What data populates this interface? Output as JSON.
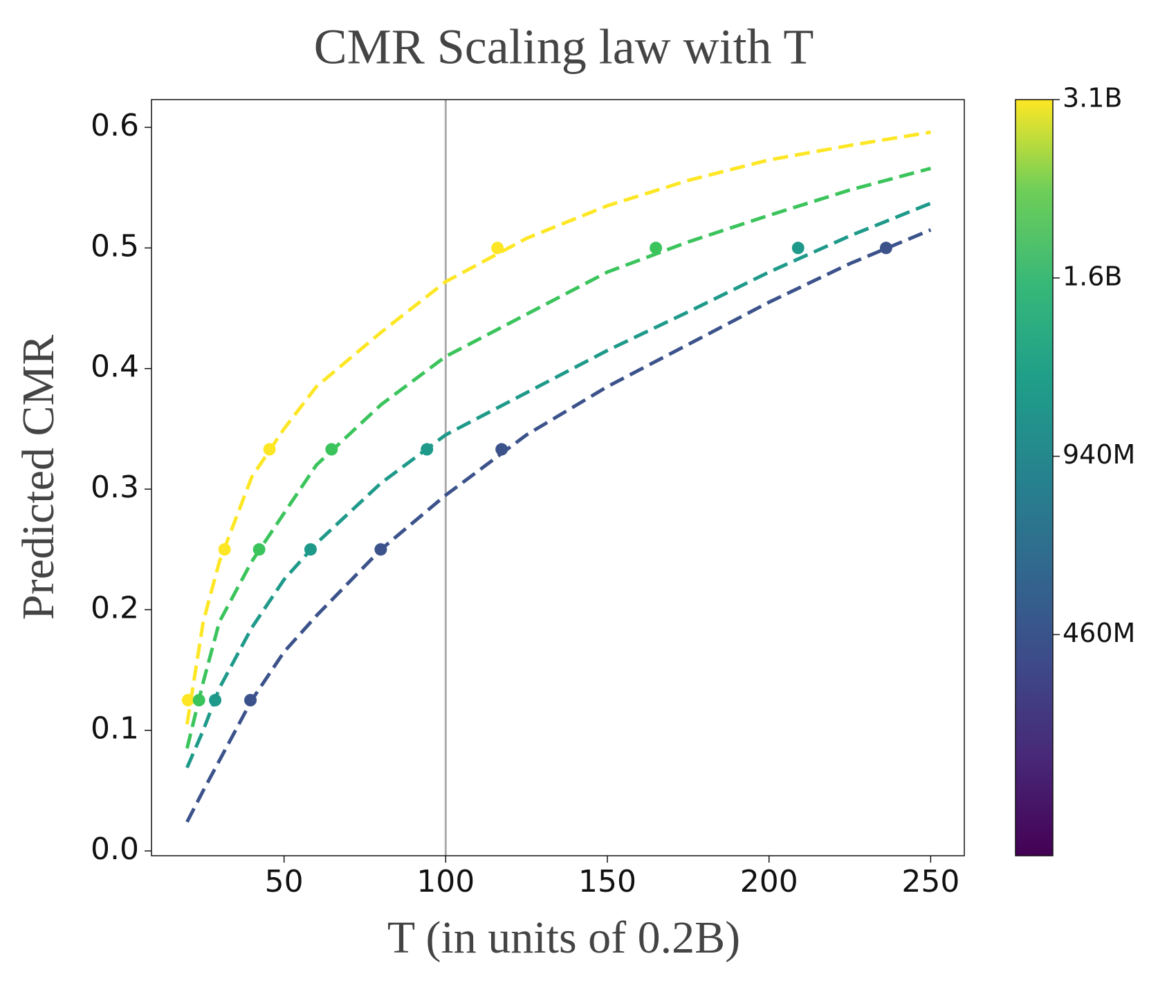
{
  "chart_data": {
    "type": "scatter",
    "title": "CMR Scaling law with T",
    "x_label": "T (in units of 0.2B)",
    "y_label": "Predicted CMR",
    "xlim": [
      9,
      260.4
    ],
    "ylim": [
      -0.004,
      0.623
    ],
    "xticks": [
      50,
      100,
      150,
      200,
      250
    ],
    "yticks": [
      {
        "value": 0,
        "label": "0.0"
      },
      0.1,
      0.2,
      0.3,
      0.4,
      0.5,
      0.6
    ],
    "reference_line_x": 100,
    "reference_line_color": "#aaaaaa",
    "series": [
      {
        "name": "3.1B",
        "color": "#fde725",
        "x": [
          20.3,
          31.6,
          45.5,
          116
        ],
        "values": [
          0.125,
          0.25,
          0.333,
          0.5
        ],
        "fit_x": [
          20,
          25,
          30,
          40,
          50,
          60,
          80,
          100,
          125,
          150,
          175,
          200,
          225,
          250
        ],
        "fit_values": [
          0.105,
          0.19,
          0.24,
          0.31,
          0.35,
          0.385,
          0.43,
          0.472,
          0.508,
          0.535,
          0.556,
          0.573,
          0.585,
          0.596
        ]
      },
      {
        "name": "1.6B",
        "color": "#3bc45c",
        "x": [
          23.7,
          42.3,
          64.7,
          165
        ],
        "values": [
          0.125,
          0.25,
          0.333,
          0.5
        ],
        "fit_x": [
          20,
          25,
          30,
          40,
          50,
          60,
          80,
          100,
          125,
          150,
          175,
          200,
          225,
          250
        ],
        "fit_values": [
          0.085,
          0.14,
          0.19,
          0.24,
          0.28,
          0.32,
          0.37,
          0.41,
          0.445,
          0.48,
          0.505,
          0.527,
          0.548,
          0.566
        ]
      },
      {
        "name": "940M",
        "color": "#1f9a8a",
        "x": [
          28.7,
          58.2,
          94.2,
          209
        ],
        "values": [
          0.125,
          0.25,
          0.333,
          0.5
        ],
        "fit_x": [
          20,
          25,
          30,
          40,
          50,
          60,
          80,
          100,
          125,
          150,
          175,
          200,
          225,
          250
        ],
        "fit_values": [
          0.069,
          0.1,
          0.135,
          0.185,
          0.225,
          0.255,
          0.305,
          0.345,
          0.38,
          0.415,
          0.447,
          0.48,
          0.51,
          0.537
        ]
      },
      {
        "name": "460M",
        "color": "#3b528b",
        "x": [
          39.6,
          79.9,
          117.3,
          236.2
        ],
        "values": [
          0.125,
          0.25,
          0.333,
          0.5
        ],
        "fit_x": [
          20,
          25,
          30,
          40,
          50,
          60,
          80,
          100,
          125,
          150,
          175,
          200,
          225,
          250
        ],
        "fit_values": [
          0.024,
          0.05,
          0.075,
          0.125,
          0.165,
          0.195,
          0.25,
          0.295,
          0.345,
          0.385,
          0.42,
          0.455,
          0.487,
          0.515
        ]
      }
    ]
  }
}
